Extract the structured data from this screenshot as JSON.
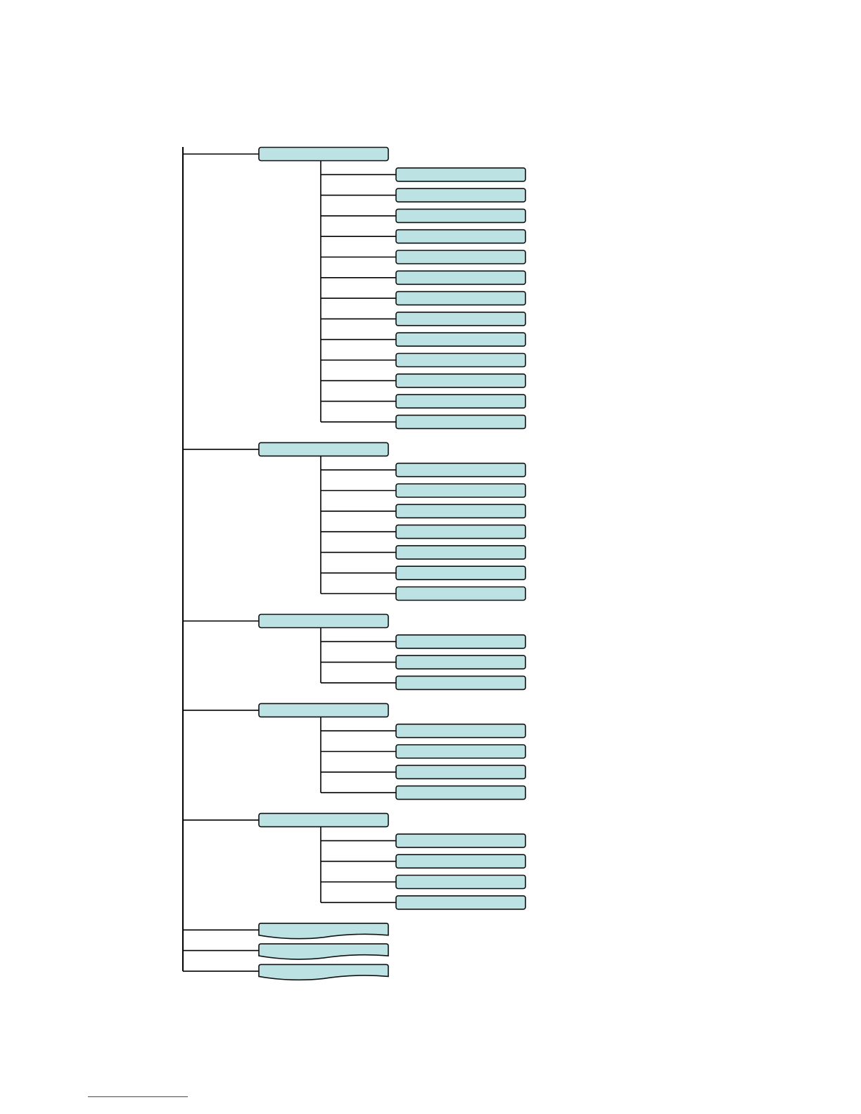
{
  "colors": {
    "node_fill": "#bde2e4",
    "node_stroke": "#111111",
    "connector": "#000000",
    "footnote_rule": "#2a3fd0"
  },
  "diagram": {
    "groups": [
      {
        "label": "",
        "shape": "rect",
        "children": [
          "",
          "",
          "",
          "",
          "",
          "",
          "",
          "",
          "",
          "",
          "",
          "",
          ""
        ]
      },
      {
        "label": "",
        "shape": "rect",
        "children": [
          "",
          "",
          "",
          "",
          "",
          "",
          ""
        ]
      },
      {
        "label": "",
        "shape": "rect",
        "children": [
          "",
          "",
          ""
        ]
      },
      {
        "label": "",
        "shape": "rect",
        "children": [
          "",
          "",
          "",
          ""
        ]
      },
      {
        "label": "",
        "shape": "rect",
        "children": [
          "",
          "",
          "",
          ""
        ]
      },
      {
        "label": "",
        "shape": "document",
        "children": []
      },
      {
        "label": "",
        "shape": "document",
        "children": []
      },
      {
        "label": "",
        "shape": "document",
        "children": []
      }
    ]
  }
}
